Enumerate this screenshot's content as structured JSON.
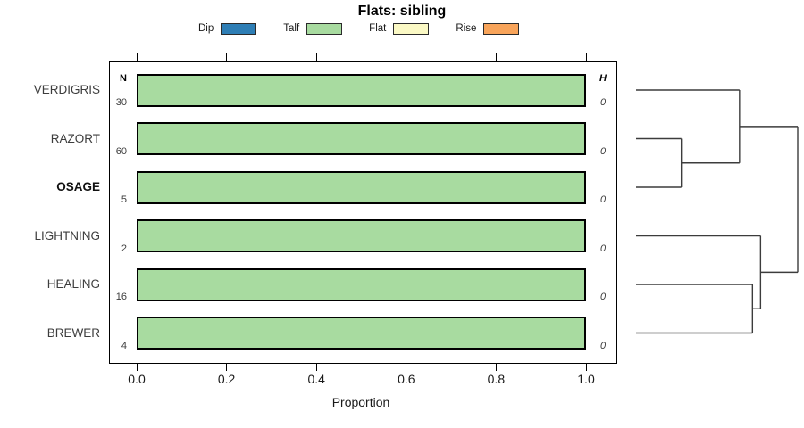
{
  "title": "Flats: sibling",
  "legend": {
    "items": [
      {
        "label": "Dip",
        "color": "#2E7EB5"
      },
      {
        "label": "Talf",
        "color": "#A8DBA0"
      },
      {
        "label": "Flat",
        "color": "#FBF9C5"
      },
      {
        "label": "Rise",
        "color": "#F8A45A"
      }
    ]
  },
  "chart_data": {
    "type": "bar",
    "orientation": "horizontal",
    "title": "Flats: sibling",
    "xlabel": "Proportion",
    "xlim": [
      0.0,
      1.0
    ],
    "x_ticks": [
      "0.0",
      "0.2",
      "0.4",
      "0.6",
      "0.8",
      "1.0"
    ],
    "n_header": "N",
    "h_header": "H",
    "categories": [
      "VERDIGRIS",
      "RAZORT",
      "OSAGE",
      "LIGHTNING",
      "HEALING",
      "BREWER"
    ],
    "rows": [
      {
        "label": "VERDIGRIS",
        "bold": false,
        "n": "30",
        "h": "0",
        "segments": [
          {
            "name": "Talf",
            "value": 1.0,
            "color": "#A8DBA0"
          }
        ]
      },
      {
        "label": "RAZORT",
        "bold": false,
        "n": "60",
        "h": "0",
        "segments": [
          {
            "name": "Talf",
            "value": 1.0,
            "color": "#A8DBA0"
          }
        ]
      },
      {
        "label": "OSAGE",
        "bold": true,
        "n": "5",
        "h": "0",
        "segments": [
          {
            "name": "Talf",
            "value": 1.0,
            "color": "#A8DBA0"
          }
        ]
      },
      {
        "label": "LIGHTNING",
        "bold": false,
        "n": "2",
        "h": "0",
        "segments": [
          {
            "name": "Talf",
            "value": 1.0,
            "color": "#A8DBA0"
          }
        ]
      },
      {
        "label": "HEALING",
        "bold": false,
        "n": "16",
        "h": "0",
        "segments": [
          {
            "name": "Talf",
            "value": 1.0,
            "color": "#A8DBA0"
          }
        ]
      },
      {
        "label": "BREWER",
        "bold": false,
        "n": "4",
        "h": "0",
        "segments": [
          {
            "name": "Talf",
            "value": 1.0,
            "color": "#A8DBA0"
          }
        ]
      }
    ],
    "dendrogram": {
      "height": 1.0,
      "children": [
        {
          "height": 0.64,
          "children": [
            {
              "leaf": "VERDIGRIS"
            },
            {
              "height": 0.28,
              "children": [
                {
                  "leaf": "RAZORT"
                },
                {
                  "leaf": "OSAGE"
                }
              ]
            }
          ]
        },
        {
          "height": 0.77,
          "children": [
            {
              "leaf": "LIGHTNING"
            },
            {
              "height": 0.72,
              "children": [
                {
                  "leaf": "HEALING"
                },
                {
                  "leaf": "BREWER"
                }
              ]
            }
          ]
        }
      ]
    }
  }
}
